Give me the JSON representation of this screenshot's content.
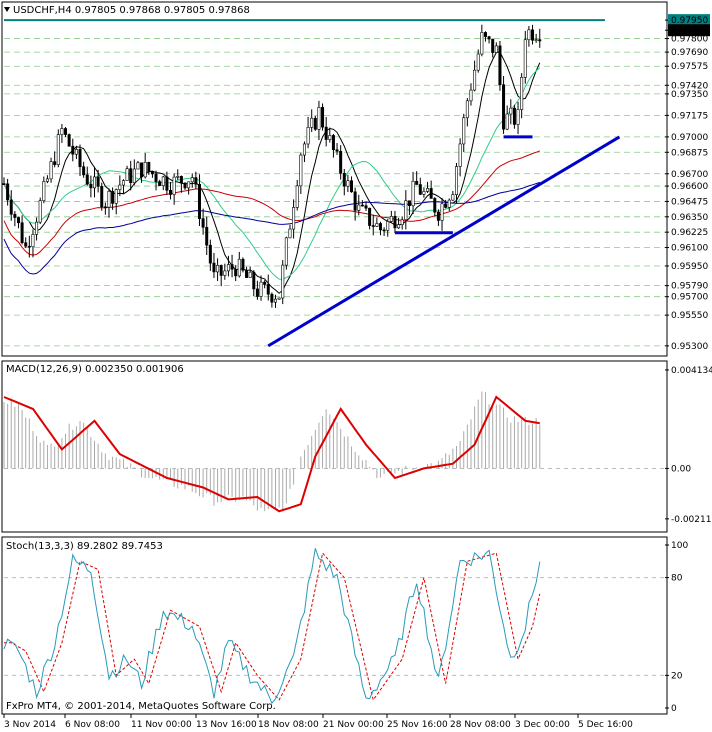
{
  "header": {
    "symbol_line": "USDCHF,H4  0.97805 0.97868 0.97805 0.97868",
    "macd_line": "MACD(12,26,9) 0.002350 0.001906",
    "stoch_line": "Stoch(13,3,3) 89.2802 89.7453",
    "copyright": "FxPro MT4, © 2001-2014, MetaQuotes Software Corp."
  },
  "price_axis": {
    "labels": [
      "0.97950",
      "0.97868",
      "0.97800",
      "0.97690",
      "0.97575",
      "0.97420",
      "0.97350",
      "0.97175",
      "0.97000",
      "0.96875",
      "0.96700",
      "0.96600",
      "0.96475",
      "0.96350",
      "0.96225",
      "0.96100",
      "0.95950",
      "0.95790",
      "0.95700",
      "0.95550",
      "0.95300"
    ],
    "values": [
      0.9795,
      0.97868,
      0.978,
      0.9769,
      0.97575,
      0.9742,
      0.9735,
      0.97175,
      0.97,
      0.96875,
      0.967,
      0.966,
      0.96475,
      0.9635,
      0.96225,
      0.961,
      0.9595,
      0.9579,
      0.957,
      0.9555,
      0.953
    ],
    "highlight": {
      "resistance": "0.97950",
      "current": "0.97868"
    }
  },
  "macd_axis": {
    "labels": [
      "0.004134",
      "0.00",
      "-0.002116"
    ],
    "values": [
      0.004134,
      0.0,
      -0.002116
    ]
  },
  "stoch_axis": {
    "labels": [
      "100",
      "80",
      "20",
      "0"
    ],
    "values": [
      100,
      80,
      20,
      0
    ]
  },
  "time_axis": {
    "labels": [
      "3 Nov 2014",
      "6 Nov 08:00",
      "11 Nov 00:00",
      "13 Nov 16:00",
      "18 Nov 08:00",
      "21 Nov 00:00",
      "25 Nov 16:00",
      "28 Nov 08:00",
      "3 Dec 00:00",
      "5 Dec 16:00"
    ]
  },
  "chart_data": {
    "type": "candlestick",
    "symbol": "USDCHF",
    "timeframe": "H4",
    "ylim": [
      0.9525,
      0.98
    ],
    "close_anchors": [
      {
        "bar": 0,
        "v": 0.9662
      },
      {
        "bar": 6,
        "v": 0.961
      },
      {
        "bar": 10,
        "v": 0.9645
      },
      {
        "bar": 16,
        "v": 0.9705
      },
      {
        "bar": 22,
        "v": 0.967
      },
      {
        "bar": 28,
        "v": 0.9648
      },
      {
        "bar": 33,
        "v": 0.9665
      },
      {
        "bar": 38,
        "v": 0.9675
      },
      {
        "bar": 46,
        "v": 0.9662
      },
      {
        "bar": 52,
        "v": 0.9668
      },
      {
        "bar": 58,
        "v": 0.9585
      },
      {
        "bar": 64,
        "v": 0.9595
      },
      {
        "bar": 70,
        "v": 0.9575
      },
      {
        "bar": 76,
        "v": 0.9572
      },
      {
        "bar": 82,
        "v": 0.9688
      },
      {
        "bar": 87,
        "v": 0.972
      },
      {
        "bar": 92,
        "v": 0.968
      },
      {
        "bar": 98,
        "v": 0.964
      },
      {
        "bar": 104,
        "v": 0.9625
      },
      {
        "bar": 110,
        "v": 0.964
      },
      {
        "bar": 114,
        "v": 0.966
      },
      {
        "bar": 120,
        "v": 0.964
      },
      {
        "bar": 124,
        "v": 0.966
      },
      {
        "bar": 128,
        "v": 0.973
      },
      {
        "bar": 132,
        "v": 0.978
      },
      {
        "bar": 136,
        "v": 0.977
      },
      {
        "bar": 138,
        "v": 0.9715
      },
      {
        "bar": 142,
        "v": 0.9715
      },
      {
        "bar": 144,
        "v": 0.9785
      },
      {
        "bar": 148,
        "v": 0.9787
      }
    ],
    "trendlines": [
      {
        "name": "Support trendline",
        "color": "#0000cc",
        "from": {
          "bar": 73,
          "v": 0.953
        },
        "to": {
          "bar": 170,
          "v": 0.97
        }
      },
      {
        "name": "Resistance",
        "color": "#008080",
        "from": {
          "bar": 0,
          "v": 0.9795
        },
        "to": {
          "bar": 166,
          "v": 0.9795
        }
      },
      {
        "name": "Range low",
        "color": "#0000cc",
        "from": {
          "bar": 108,
          "v": 0.9622
        },
        "to": {
          "bar": 124,
          "v": 0.9622
        }
      },
      {
        "name": "Range low 2",
        "color": "#0000cc",
        "from": {
          "bar": 138,
          "v": 0.97
        },
        "to": {
          "bar": 146,
          "v": 0.97
        }
      }
    ],
    "moving_averages": [
      {
        "name": "MA fast",
        "color": "#000000"
      },
      {
        "name": "MA mid",
        "color": "#33cc88"
      },
      {
        "name": "MA slow",
        "color": "#cc0000"
      },
      {
        "name": "MA long",
        "color": "#000099"
      }
    ],
    "macd": {
      "signal_color": "#dd0000",
      "hist_color": "#aaaaaa",
      "signal_anchors": [
        {
          "bar": 0,
          "v": 0.003
        },
        {
          "bar": 8,
          "v": 0.0025
        },
        {
          "bar": 16,
          "v": 0.0008
        },
        {
          "bar": 25,
          "v": 0.002
        },
        {
          "bar": 32,
          "v": 0.0006
        },
        {
          "bar": 45,
          "v": -0.0004
        },
        {
          "bar": 55,
          "v": -0.0008
        },
        {
          "bar": 62,
          "v": -0.0013
        },
        {
          "bar": 70,
          "v": -0.0012
        },
        {
          "bar": 76,
          "v": -0.0018
        },
        {
          "bar": 82,
          "v": -0.0015
        },
        {
          "bar": 86,
          "v": 0.0005
        },
        {
          "bar": 93,
          "v": 0.0025
        },
        {
          "bar": 100,
          "v": 0.001
        },
        {
          "bar": 108,
          "v": -0.0004
        },
        {
          "bar": 116,
          "v": 0.0
        },
        {
          "bar": 124,
          "v": 0.0002
        },
        {
          "bar": 130,
          "v": 0.001
        },
        {
          "bar": 136,
          "v": 0.003
        },
        {
          "bar": 144,
          "v": 0.002
        },
        {
          "bar": 148,
          "v": 0.0019
        }
      ]
    },
    "stochastic": {
      "main_color": "#2a9ab8",
      "signal_color": "#dd0000",
      "main_anchors": [
        {
          "bar": 0,
          "v": 40
        },
        {
          "bar": 4,
          "v": 35
        },
        {
          "bar": 9,
          "v": 10
        },
        {
          "bar": 14,
          "v": 40
        },
        {
          "bar": 19,
          "v": 90
        },
        {
          "bar": 24,
          "v": 85
        },
        {
          "bar": 29,
          "v": 20
        },
        {
          "bar": 34,
          "v": 30
        },
        {
          "bar": 38,
          "v": 15
        },
        {
          "bar": 44,
          "v": 60
        },
        {
          "bar": 52,
          "v": 50
        },
        {
          "bar": 58,
          "v": 10
        },
        {
          "bar": 62,
          "v": 40
        },
        {
          "bar": 68,
          "v": 20
        },
        {
          "bar": 74,
          "v": 5
        },
        {
          "bar": 80,
          "v": 30
        },
        {
          "bar": 86,
          "v": 95
        },
        {
          "bar": 92,
          "v": 80
        },
        {
          "bar": 100,
          "v": 5
        },
        {
          "bar": 108,
          "v": 30
        },
        {
          "bar": 114,
          "v": 80
        },
        {
          "bar": 120,
          "v": 15
        },
        {
          "bar": 126,
          "v": 90
        },
        {
          "bar": 134,
          "v": 95
        },
        {
          "bar": 140,
          "v": 30
        },
        {
          "bar": 144,
          "v": 50
        },
        {
          "bar": 148,
          "v": 90
        }
      ]
    }
  }
}
